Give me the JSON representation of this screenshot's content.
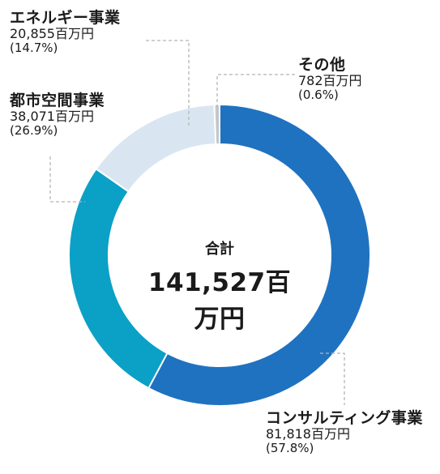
{
  "chart_data": {
    "type": "donut",
    "center": {
      "title": "合計",
      "total": "141,527百万円"
    },
    "segments": [
      {
        "name": "コンサルティング事業",
        "value": 81818,
        "value_label": "81,818百万円",
        "percent_label": "(57.8%)",
        "color": "#1f72c0"
      },
      {
        "name": "都市空間事業",
        "value": 38071,
        "value_label": "38,071百万円",
        "percent_label": "(26.9%)",
        "color": "#0ba0c6"
      },
      {
        "name": "エネルギー事業",
        "value": 20855,
        "value_label": "20,855百万円",
        "percent_label": "(14.7%)",
        "color": "#d9e6f2"
      },
      {
        "name": "その他",
        "value": 782,
        "value_label": "782百万円",
        "percent_label": "(0.6%)",
        "color": "#c2c7cc"
      }
    ]
  }
}
